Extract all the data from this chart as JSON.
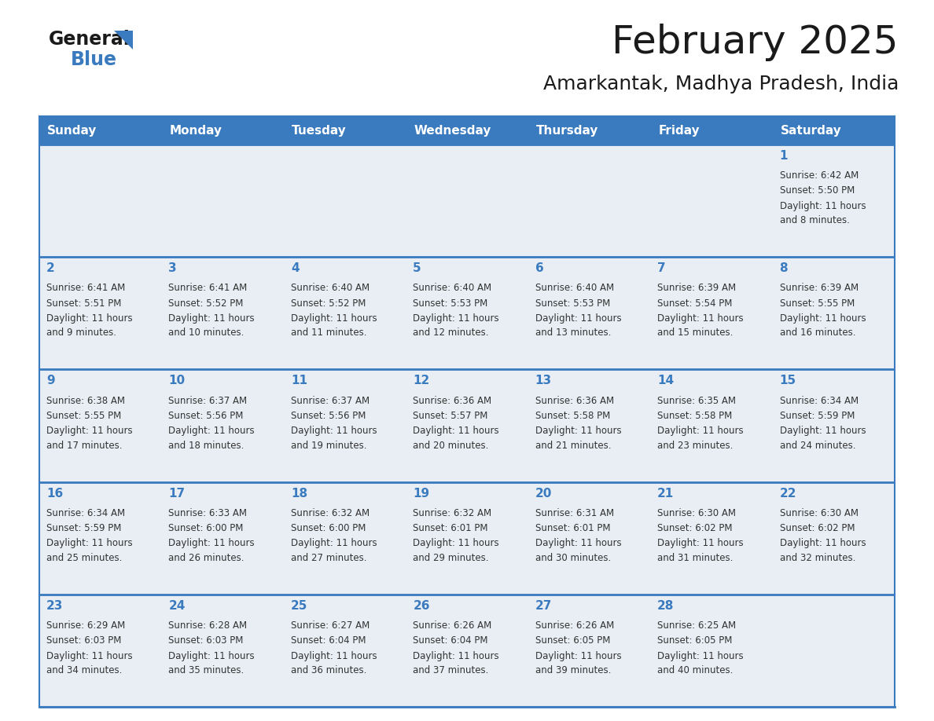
{
  "title": "February 2025",
  "subtitle": "Amarkantak, Madhya Pradesh, India",
  "header_color": "#3a7abf",
  "header_text_color": "#ffffff",
  "cell_bg_color": "#e8eef4",
  "day_number_color": "#3a7abf",
  "text_color": "#333333",
  "line_color": "#3a7abf",
  "days_of_week": [
    "Sunday",
    "Monday",
    "Tuesday",
    "Wednesday",
    "Thursday",
    "Friday",
    "Saturday"
  ],
  "weeks": [
    [
      {
        "day": null,
        "sunrise": null,
        "sunset": null,
        "daylight": null
      },
      {
        "day": null,
        "sunrise": null,
        "sunset": null,
        "daylight": null
      },
      {
        "day": null,
        "sunrise": null,
        "sunset": null,
        "daylight": null
      },
      {
        "day": null,
        "sunrise": null,
        "sunset": null,
        "daylight": null
      },
      {
        "day": null,
        "sunrise": null,
        "sunset": null,
        "daylight": null
      },
      {
        "day": null,
        "sunrise": null,
        "sunset": null,
        "daylight": null
      },
      {
        "day": 1,
        "sunrise": "6:42 AM",
        "sunset": "5:50 PM",
        "daylight": "11 hours\nand 8 minutes."
      }
    ],
    [
      {
        "day": 2,
        "sunrise": "6:41 AM",
        "sunset": "5:51 PM",
        "daylight": "11 hours\nand 9 minutes."
      },
      {
        "day": 3,
        "sunrise": "6:41 AM",
        "sunset": "5:52 PM",
        "daylight": "11 hours\nand 10 minutes."
      },
      {
        "day": 4,
        "sunrise": "6:40 AM",
        "sunset": "5:52 PM",
        "daylight": "11 hours\nand 11 minutes."
      },
      {
        "day": 5,
        "sunrise": "6:40 AM",
        "sunset": "5:53 PM",
        "daylight": "11 hours\nand 12 minutes."
      },
      {
        "day": 6,
        "sunrise": "6:40 AM",
        "sunset": "5:53 PM",
        "daylight": "11 hours\nand 13 minutes."
      },
      {
        "day": 7,
        "sunrise": "6:39 AM",
        "sunset": "5:54 PM",
        "daylight": "11 hours\nand 15 minutes."
      },
      {
        "day": 8,
        "sunrise": "6:39 AM",
        "sunset": "5:55 PM",
        "daylight": "11 hours\nand 16 minutes."
      }
    ],
    [
      {
        "day": 9,
        "sunrise": "6:38 AM",
        "sunset": "5:55 PM",
        "daylight": "11 hours\nand 17 minutes."
      },
      {
        "day": 10,
        "sunrise": "6:37 AM",
        "sunset": "5:56 PM",
        "daylight": "11 hours\nand 18 minutes."
      },
      {
        "day": 11,
        "sunrise": "6:37 AM",
        "sunset": "5:56 PM",
        "daylight": "11 hours\nand 19 minutes."
      },
      {
        "day": 12,
        "sunrise": "6:36 AM",
        "sunset": "5:57 PM",
        "daylight": "11 hours\nand 20 minutes."
      },
      {
        "day": 13,
        "sunrise": "6:36 AM",
        "sunset": "5:58 PM",
        "daylight": "11 hours\nand 21 minutes."
      },
      {
        "day": 14,
        "sunrise": "6:35 AM",
        "sunset": "5:58 PM",
        "daylight": "11 hours\nand 23 minutes."
      },
      {
        "day": 15,
        "sunrise": "6:34 AM",
        "sunset": "5:59 PM",
        "daylight": "11 hours\nand 24 minutes."
      }
    ],
    [
      {
        "day": 16,
        "sunrise": "6:34 AM",
        "sunset": "5:59 PM",
        "daylight": "11 hours\nand 25 minutes."
      },
      {
        "day": 17,
        "sunrise": "6:33 AM",
        "sunset": "6:00 PM",
        "daylight": "11 hours\nand 26 minutes."
      },
      {
        "day": 18,
        "sunrise": "6:32 AM",
        "sunset": "6:00 PM",
        "daylight": "11 hours\nand 27 minutes."
      },
      {
        "day": 19,
        "sunrise": "6:32 AM",
        "sunset": "6:01 PM",
        "daylight": "11 hours\nand 29 minutes."
      },
      {
        "day": 20,
        "sunrise": "6:31 AM",
        "sunset": "6:01 PM",
        "daylight": "11 hours\nand 30 minutes."
      },
      {
        "day": 21,
        "sunrise": "6:30 AM",
        "sunset": "6:02 PM",
        "daylight": "11 hours\nand 31 minutes."
      },
      {
        "day": 22,
        "sunrise": "6:30 AM",
        "sunset": "6:02 PM",
        "daylight": "11 hours\nand 32 minutes."
      }
    ],
    [
      {
        "day": 23,
        "sunrise": "6:29 AM",
        "sunset": "6:03 PM",
        "daylight": "11 hours\nand 34 minutes."
      },
      {
        "day": 24,
        "sunrise": "6:28 AM",
        "sunset": "6:03 PM",
        "daylight": "11 hours\nand 35 minutes."
      },
      {
        "day": 25,
        "sunrise": "6:27 AM",
        "sunset": "6:04 PM",
        "daylight": "11 hours\nand 36 minutes."
      },
      {
        "day": 26,
        "sunrise": "6:26 AM",
        "sunset": "6:04 PM",
        "daylight": "11 hours\nand 37 minutes."
      },
      {
        "day": 27,
        "sunrise": "6:26 AM",
        "sunset": "6:05 PM",
        "daylight": "11 hours\nand 39 minutes."
      },
      {
        "day": 28,
        "sunrise": "6:25 AM",
        "sunset": "6:05 PM",
        "daylight": "11 hours\nand 40 minutes."
      },
      {
        "day": null,
        "sunrise": null,
        "sunset": null,
        "daylight": null
      }
    ]
  ],
  "logo_text_general": "General",
  "logo_text_blue": "Blue",
  "title_fontsize": 36,
  "subtitle_fontsize": 18,
  "header_fontsize": 11,
  "day_num_fontsize": 11,
  "cell_text_fontsize": 8.5
}
